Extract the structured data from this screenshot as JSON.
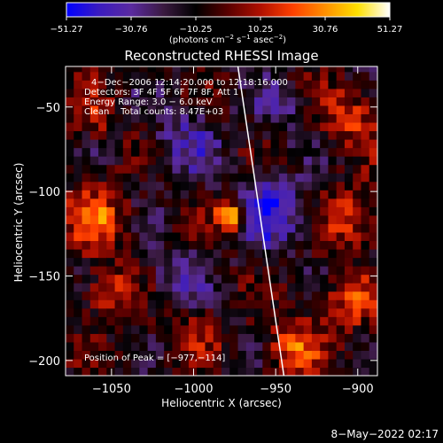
{
  "chart_data": {
    "type": "heatmap",
    "title": "Reconstructed RHESSI Image",
    "xlabel": "Heliocentric X (arcsec)",
    "ylabel": "Heliocentric Y (arcsec)",
    "xlim": [
      -1078,
      -888
    ],
    "ylim": [
      -209,
      -26
    ],
    "x_ticks": [
      -1050,
      -1000,
      -950,
      -900
    ],
    "y_ticks": [
      -50,
      -100,
      -150,
      -200
    ],
    "x_tick_labels": [
      "−1050",
      "−1000",
      "−950",
      "−900"
    ],
    "y_tick_labels": [
      "−50",
      "−100",
      "−150",
      "−200"
    ],
    "colorbar": {
      "min": -51.27,
      "max": 51.27,
      "tick_labels": [
        "−51.27",
        "−30.76",
        "−10.25",
        "10.25",
        "30.76",
        "51.27"
      ],
      "tick_values": [
        -51.27,
        -30.76,
        -10.25,
        10.25,
        30.76,
        51.27
      ],
      "units_html": "(photons cm<tspan dy=\"-4\" font-size=\"7\">−2</tspan><tspan dy=\"4\"> s</tspan><tspan dy=\"-4\" font-size=\"7\">−1</tspan><tspan dy=\"4\"> asec</tspan><tspan dy=\"-4\" font-size=\"7\">−2</tspan><tspan dy=\"4\">)</tspan>",
      "colors": [
        "#0000ff",
        "#3a1bc0",
        "#5a2aa0",
        "#3a1a40",
        "#000000",
        "#5a0000",
        "#b01000",
        "#ff4000",
        "#ff9000",
        "#ffe000",
        "#ffffff"
      ]
    },
    "annotations": [
      "4−Dec−2006 12:14:20.000 to 12:18:16.000",
      "Detectors: 3F 4F 5F 6F 7F 8F, Att 1",
      "Energy Range: 3.0 − 6.0 keV",
      "Clean    Total counts: 8.47E+03"
    ],
    "peak_label": "Position of Peak = [−977,−114]",
    "peak": {
      "x": -977,
      "y": -114,
      "value": 51.27
    },
    "limb_line": [
      {
        "x": -973,
        "y": -26
      },
      {
        "x": -945,
        "y": -209
      }
    ],
    "features": [
      {
        "x": -977,
        "y": -114,
        "sigma": 7,
        "amp": 51.27
      },
      {
        "x": -1060,
        "y": -115,
        "sigma": 13,
        "amp": 30
      },
      {
        "x": -1052,
        "y": -160,
        "sigma": 11,
        "amp": 24
      },
      {
        "x": -1060,
        "y": -55,
        "sigma": 10,
        "amp": 18
      },
      {
        "x": -905,
        "y": -55,
        "sigma": 12,
        "amp": 26
      },
      {
        "x": -903,
        "y": -115,
        "sigma": 12,
        "amp": 24
      },
      {
        "x": -905,
        "y": -165,
        "sigma": 12,
        "amp": 26
      },
      {
        "x": -940,
        "y": -192,
        "sigma": 12,
        "amp": 30
      },
      {
        "x": -1000,
        "y": -185,
        "sigma": 12,
        "amp": 14
      },
      {
        "x": -955,
        "y": -112,
        "sigma": 14,
        "amp": -34
      },
      {
        "x": -1005,
        "y": -70,
        "sigma": 14,
        "amp": -20
      },
      {
        "x": -1010,
        "y": -150,
        "sigma": 12,
        "amp": -18
      },
      {
        "x": -945,
        "y": -50,
        "sigma": 12,
        "amp": -14
      }
    ]
  },
  "footer": {
    "timestamp": "8−May−2022 02:17"
  }
}
